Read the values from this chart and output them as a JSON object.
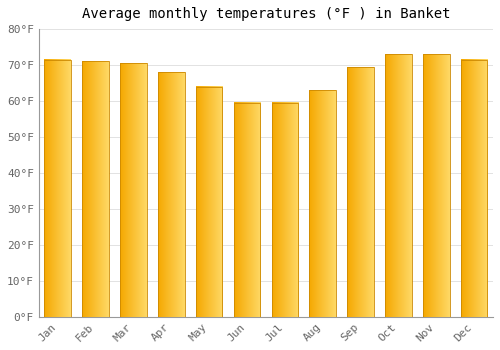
{
  "title": "Average monthly temperatures (°F ) in Banket",
  "months": [
    "Jan",
    "Feb",
    "Mar",
    "Apr",
    "May",
    "Jun",
    "Jul",
    "Aug",
    "Sep",
    "Oct",
    "Nov",
    "Dec"
  ],
  "values": [
    71.5,
    71.0,
    70.5,
    68.0,
    64.0,
    59.5,
    59.5,
    63.0,
    69.5,
    73.0,
    73.0,
    71.5
  ],
  "bar_color_left": "#F5A800",
  "bar_color_right": "#FFD966",
  "ylim": [
    0,
    80
  ],
  "yticks": [
    0,
    10,
    20,
    30,
    40,
    50,
    60,
    70,
    80
  ],
  "ytick_labels": [
    "0°F",
    "10°F",
    "20°F",
    "30°F",
    "40°F",
    "50°F",
    "60°F",
    "70°F",
    "80°F"
  ],
  "background_color": "#FFFFFF",
  "grid_color": "#DDDDDD",
  "font_family": "monospace",
  "title_fontsize": 10,
  "tick_fontsize": 8,
  "bar_edge_color": "#CC8800",
  "bar_width": 0.7
}
